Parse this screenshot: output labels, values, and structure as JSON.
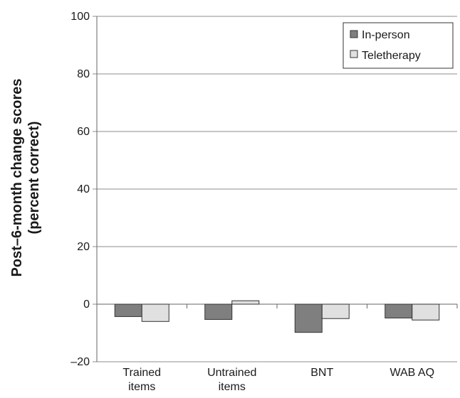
{
  "chart_data": {
    "type": "bar",
    "title": "",
    "xlabel": "",
    "ylabel": [
      "Post–6-month change scores",
      "(percent correct)"
    ],
    "ylim": [
      -20,
      100
    ],
    "yticks": [
      -20,
      0,
      20,
      40,
      60,
      80,
      100
    ],
    "ytick_labels": [
      "–20",
      "0",
      "20",
      "40",
      "60",
      "80",
      "100"
    ],
    "grid": true,
    "legend_position": "top-right",
    "categories": [
      [
        "Trained",
        "items"
      ],
      [
        "Untrained",
        "items"
      ],
      [
        "BNT"
      ],
      [
        "WAB AQ"
      ]
    ],
    "series": [
      {
        "name": "In-person",
        "color": "#7f7f7f",
        "values": [
          -4.3,
          -5.3,
          -9.8,
          -4.8
        ]
      },
      {
        "name": "Teletherapy",
        "color": "#e0e0e0",
        "values": [
          -6.0,
          1.2,
          -5.0,
          -5.5
        ]
      }
    ]
  }
}
